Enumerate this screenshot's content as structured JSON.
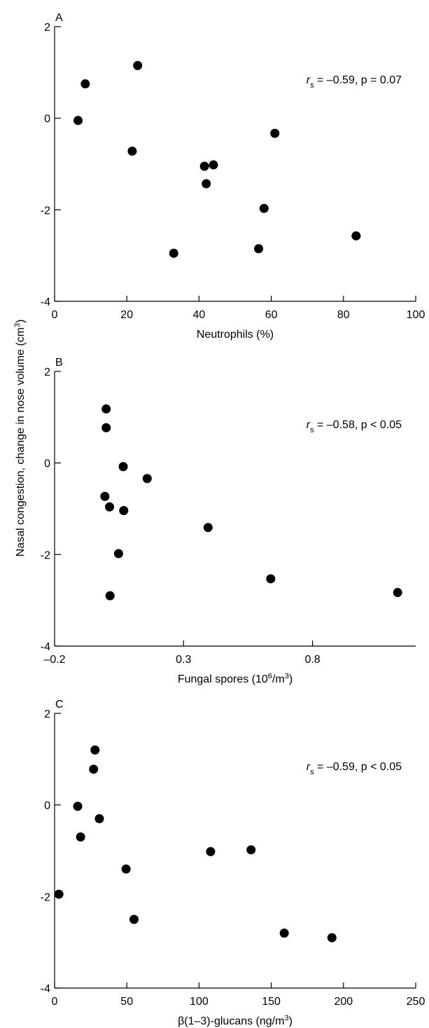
{
  "figure": {
    "shared_ylabel": {
      "prefix": "Nasal congestion, change in nose volume (cm",
      "sup": "3",
      "suffix": ")"
    }
  },
  "chart_data": [
    {
      "type": "scatter",
      "panel_label": "A",
      "annotation": {
        "var": "r",
        "sub": "s",
        "rest": " = –0.59, p = 0.07"
      },
      "xlabel": {
        "text": "Neutrophils (%)"
      },
      "xlim": [
        0,
        100
      ],
      "ylim": [
        -4,
        2
      ],
      "x_ticks": [
        {
          "value": 0,
          "label": "0"
        },
        {
          "value": 20,
          "label": "20"
        },
        {
          "value": 40,
          "label": "40"
        },
        {
          "value": 60,
          "label": "60"
        },
        {
          "value": 80,
          "label": "80"
        },
        {
          "value": 100,
          "label": "100"
        }
      ],
      "y_ticks": [
        {
          "value": -4,
          "label": "-4"
        },
        {
          "value": -2,
          "label": "-2"
        },
        {
          "value": 0,
          "label": "0"
        },
        {
          "value": 2,
          "label": "2"
        }
      ],
      "points": [
        {
          "x": 6.5,
          "y": -0.05
        },
        {
          "x": 8.5,
          "y": 0.75
        },
        {
          "x": 21.5,
          "y": -0.72
        },
        {
          "x": 23,
          "y": 1.15
        },
        {
          "x": 33,
          "y": -2.95
        },
        {
          "x": 41.5,
          "y": -1.05
        },
        {
          "x": 42,
          "y": -1.43
        },
        {
          "x": 44,
          "y": -1.02
        },
        {
          "x": 56.5,
          "y": -2.85
        },
        {
          "x": 58,
          "y": -1.97
        },
        {
          "x": 61,
          "y": -0.33
        },
        {
          "x": 83.5,
          "y": -2.57
        }
      ]
    },
    {
      "type": "scatter",
      "panel_label": "B",
      "annotation": {
        "var": "r",
        "sub": "s",
        "rest": " = –0.58, p < 0.05"
      },
      "xlabel": {
        "prefix": "Fungal spores (10",
        "sup1": "6",
        "mid": "/m",
        "sup2": "3",
        "suffix": ")"
      },
      "xlim": [
        -0.2,
        1.2
      ],
      "ylim": [
        -4,
        2
      ],
      "x_ticks": [
        {
          "value": -0.2,
          "label": "–0.2"
        },
        {
          "value": 0.3,
          "label": "0.3"
        },
        {
          "value": 0.8,
          "label": "0.8"
        }
      ],
      "y_ticks": [
        {
          "value": -4,
          "label": "-4"
        },
        {
          "value": -2,
          "label": "-2"
        },
        {
          "value": 0,
          "label": "0"
        },
        {
          "value": 2,
          "label": "2"
        }
      ],
      "points": [
        {
          "x": 0.0,
          "y": 1.18
        },
        {
          "x": 0.0,
          "y": 0.77
        },
        {
          "x": -0.005,
          "y": -0.73
        },
        {
          "x": 0.013,
          "y": -0.96
        },
        {
          "x": 0.048,
          "y": -1.98
        },
        {
          "x": 0.015,
          "y": -2.9
        },
        {
          "x": 0.066,
          "y": -0.08
        },
        {
          "x": 0.068,
          "y": -1.04
        },
        {
          "x": 0.159,
          "y": -0.34
        },
        {
          "x": 0.395,
          "y": -1.41
        },
        {
          "x": 0.638,
          "y": -2.53
        },
        {
          "x": 1.13,
          "y": -2.83
        }
      ]
    },
    {
      "type": "scatter",
      "panel_label": "C",
      "annotation": {
        "var": "r",
        "sub": "s",
        "rest": " = –0.59, p < 0.05"
      },
      "xlabel": {
        "prefix": "β(1–3)-glucans (ng/m",
        "sup": "3",
        "suffix": ")"
      },
      "xlim": [
        0,
        250
      ],
      "ylim": [
        -4,
        2
      ],
      "x_ticks": [
        {
          "value": 0,
          "label": "0"
        },
        {
          "value": 50,
          "label": "50"
        },
        {
          "value": 100,
          "label": "100"
        },
        {
          "value": 150,
          "label": "150"
        },
        {
          "value": 200,
          "label": "200"
        },
        {
          "value": 250,
          "label": "250"
        }
      ],
      "y_ticks": [
        {
          "value": -4,
          "label": "-4"
        },
        {
          "value": -2,
          "label": "-2"
        },
        {
          "value": 0,
          "label": "0"
        },
        {
          "value": 2,
          "label": "2"
        }
      ],
      "points": [
        {
          "x": 3,
          "y": -1.95
        },
        {
          "x": 16,
          "y": -0.03
        },
        {
          "x": 18,
          "y": -0.7
        },
        {
          "x": 27,
          "y": 0.78
        },
        {
          "x": 28,
          "y": 1.2
        },
        {
          "x": 31,
          "y": -0.3
        },
        {
          "x": 49.5,
          "y": -1.4
        },
        {
          "x": 55,
          "y": -2.5
        },
        {
          "x": 108,
          "y": -1.02
        },
        {
          "x": 136,
          "y": -0.98
        },
        {
          "x": 159,
          "y": -2.8
        },
        {
          "x": 192,
          "y": -2.9
        }
      ]
    }
  ]
}
